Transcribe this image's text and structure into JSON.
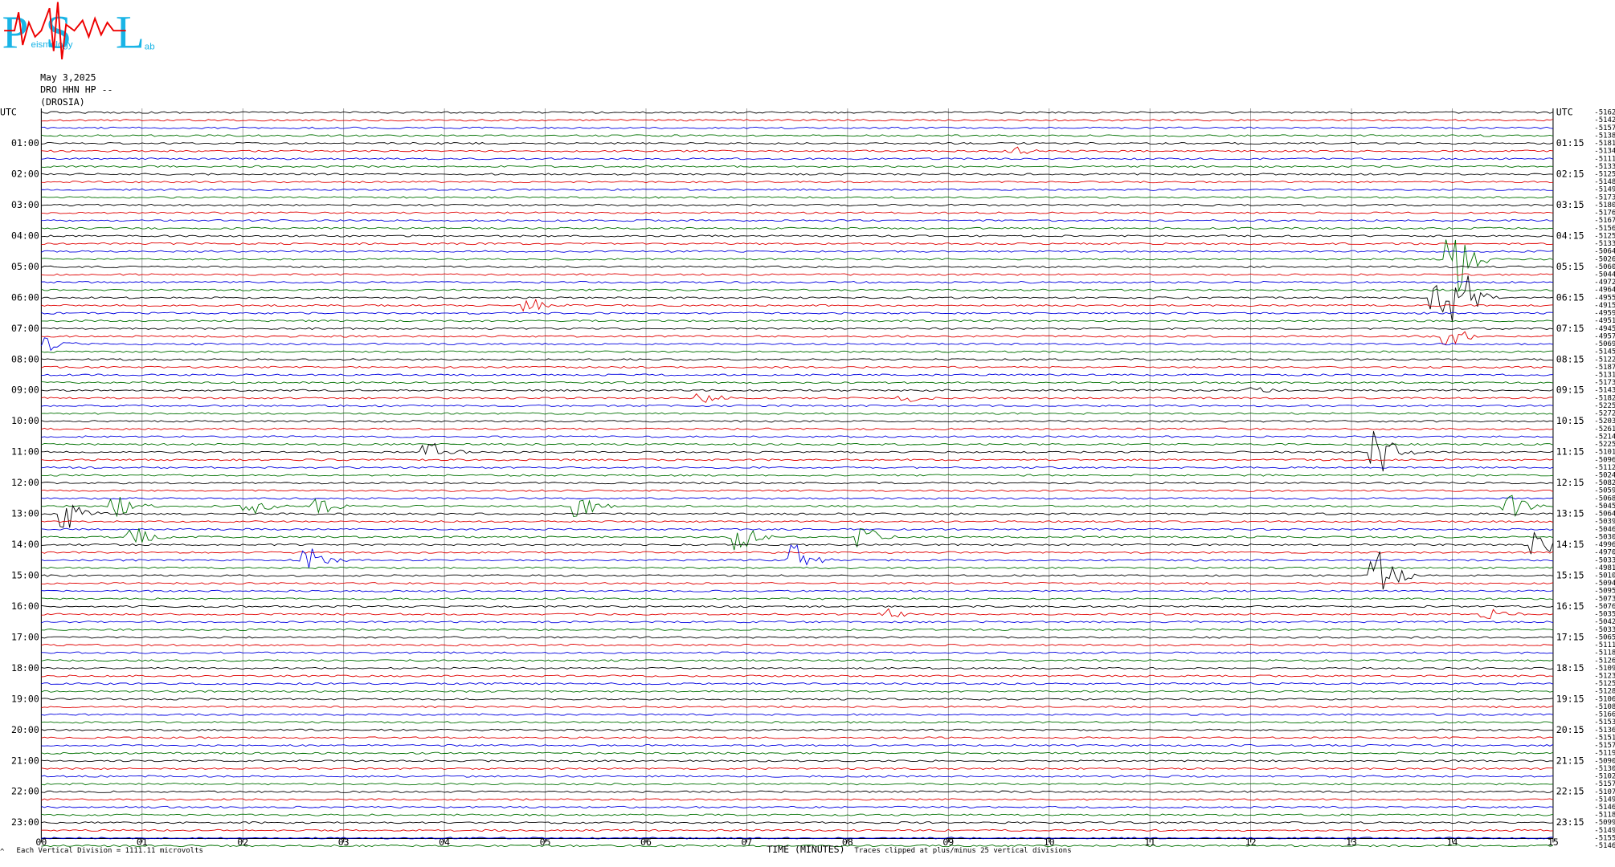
{
  "logo": {
    "letters": [
      "P",
      "S",
      "L"
    ],
    "word1": "eismology",
    "word2": "ab"
  },
  "header": {
    "date": "May 3,2025",
    "station": "DRO HHN HP --",
    "site": "(DROSIA)"
  },
  "left_labels": [
    "UTC",
    "01:00",
    "02:00",
    "03:00",
    "04:00",
    "05:00",
    "06:00",
    "07:00",
    "08:00",
    "09:00",
    "10:00",
    "11:00",
    "12:00",
    "13:00",
    "14:00",
    "15:00",
    "16:00",
    "17:00",
    "18:00",
    "19:00",
    "20:00",
    "21:00",
    "22:00",
    "23:00"
  ],
  "right_labels": [
    "UTC",
    "01:15",
    "02:15",
    "03:15",
    "04:15",
    "05:15",
    "06:15",
    "07:15",
    "08:15",
    "09:15",
    "10:15",
    "11:15",
    "12:15",
    "13:15",
    "14:15",
    "15:15",
    "16:15",
    "17:15",
    "18:15",
    "19:15",
    "20:15",
    "21:15",
    "22:15",
    "23:15"
  ],
  "trace_offsets": [
    "-5162",
    "-5142",
    "-5157",
    "-5138",
    "-5181",
    "-5134",
    "-5111",
    "-5133",
    "-5125",
    "-5148",
    "-5149",
    "-5173",
    "-5180",
    "-5176",
    "-5167",
    "-5156",
    "-5125",
    "-5133",
    "-5064",
    "-5026",
    "-5060",
    "-5044",
    "-4972",
    "-4964",
    "-4955",
    "-4915",
    "-4959",
    "-4951",
    "-4945",
    "-4957",
    "-5069",
    "-5145",
    "-5122",
    "-5187",
    "-5131",
    "-5173",
    "-5143",
    "-5182",
    "-5225",
    "-5272",
    "-5203",
    "-5261",
    "-5214",
    "-5225",
    "-5101",
    "-5096",
    "-5112",
    "-5024",
    "-5082",
    "-5059",
    "-5068",
    "-5045",
    "-5064",
    "-5039",
    "-5046",
    "-5030",
    "-4996",
    "-4970",
    "-5033",
    "-4981",
    "-5010",
    "-5094",
    "-5095",
    "-5073",
    "-5076",
    "-5035",
    "-5042",
    "-5033",
    "-5065",
    "-5111",
    "-5118",
    "-5126",
    "-5109",
    "-5123",
    "-5125",
    "-5128",
    "-5106",
    "-5108",
    "-5166",
    "-5153",
    "-5136",
    "-5151",
    "-5157",
    "-5119",
    "-5090",
    "-5130",
    "-5102",
    "-5157",
    "-5107",
    "-5149",
    "-5146",
    "-5118",
    "-5099",
    "-5149",
    "-5155",
    "-5146"
  ],
  "x_labels": [
    "00",
    "01",
    "02",
    "03",
    "04",
    "05",
    "06",
    "07",
    "08",
    "09",
    "10",
    "11",
    "12",
    "13",
    "14",
    "15"
  ],
  "footer": {
    "scale_note": "Each Vertical Division = 1111.11 microvolts",
    "axis_title": "TIME (MINUTES)",
    "clip_note": "Traces clipped at plus/minus 25 vertical divisions"
  }
}
